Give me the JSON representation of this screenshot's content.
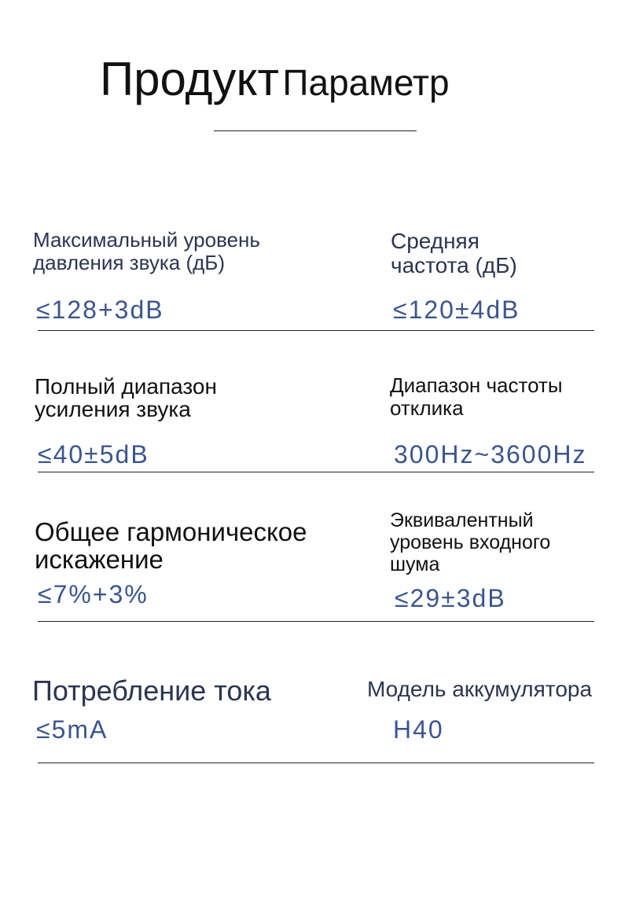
{
  "header": {
    "title_main": "Продукт",
    "title_sub": "Параметр"
  },
  "specs": [
    {
      "label_lines": [
        "Максимальный уровень",
        "давления звука (дБ)"
      ],
      "value": "≤128+3dB"
    },
    {
      "label_lines": [
        "Средняя",
        "частота (дБ)"
      ],
      "value": "≤120±4dB"
    },
    {
      "label_lines": [
        "Полный диапазон",
        "усиления звука"
      ],
      "value": "≤40±5dB"
    },
    {
      "label_lines": [
        "Диапазон частоты",
        "отклика"
      ],
      "value": "300Hz~3600Hz"
    },
    {
      "label_lines": [
        "Общее гармоническое",
        "искажение"
      ],
      "value": "≤7%+3%"
    },
    {
      "label_lines": [
        "Эквивалентный",
        "уровень входного",
        "шума"
      ],
      "value": "≤29±3dB"
    },
    {
      "label_lines": [
        "Потребление тока"
      ],
      "value": "≤5mA"
    },
    {
      "label_lines": [
        "Модель аккумулятора"
      ],
      "value": "H40"
    }
  ],
  "colors": {
    "value_text": "#3b5590",
    "label_text": "#2b3550"
  }
}
